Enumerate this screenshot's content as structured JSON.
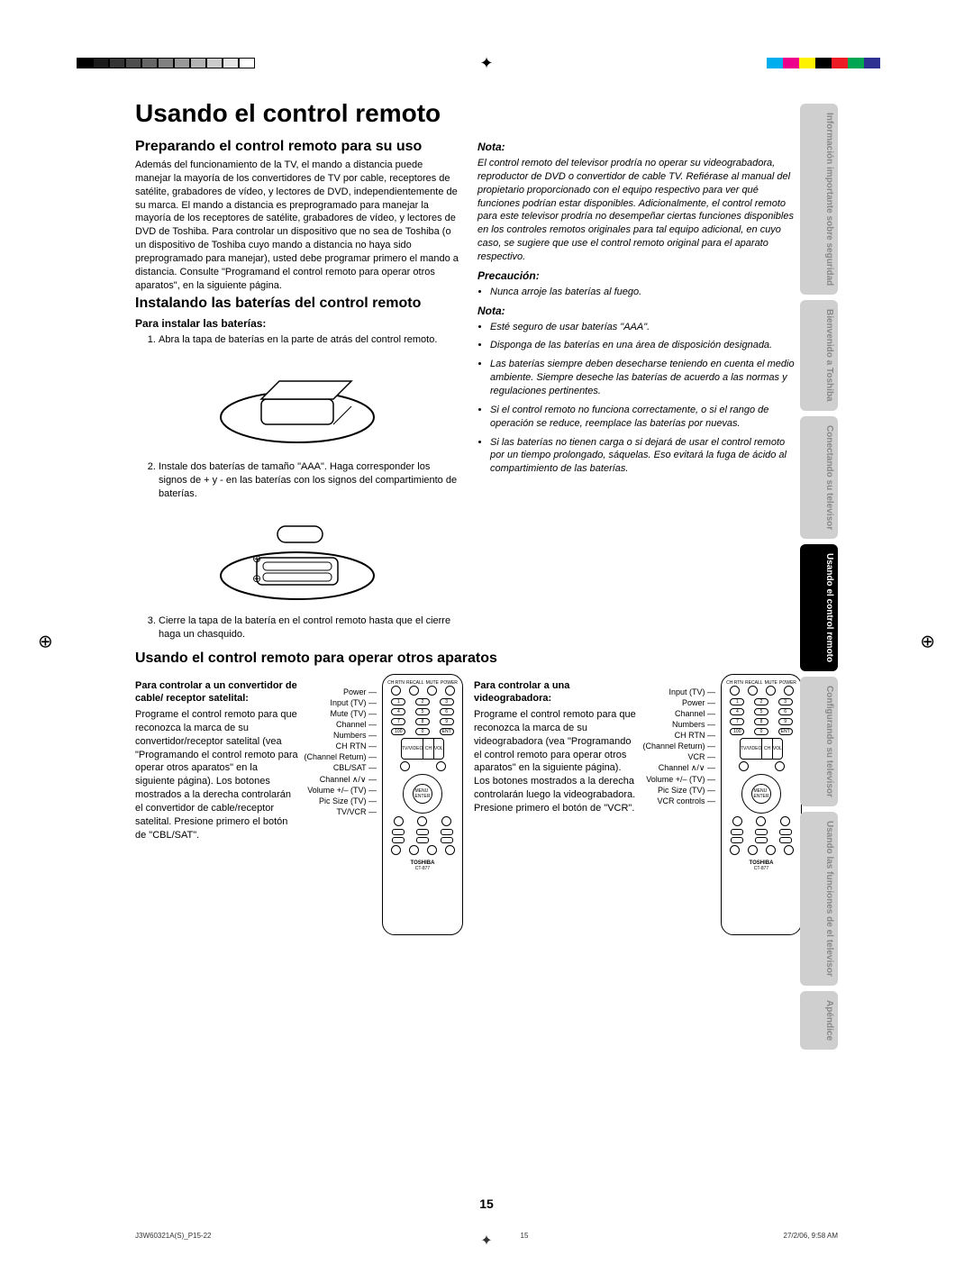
{
  "crop_marks": {
    "bw_shades": [
      "#000000",
      "#1a1a1a",
      "#333333",
      "#4d4d4d",
      "#666666",
      "#808080",
      "#999999",
      "#b3b3b3",
      "#cccccc",
      "#e6e6e6",
      "#ffffff"
    ],
    "color_swatches": [
      "#00aeef",
      "#ec008c",
      "#fff200",
      "#000000",
      "#ed1c24",
      "#00a651",
      "#2e3192",
      "#ffffff"
    ]
  },
  "title": "Usando el control remoto",
  "section1": {
    "heading": "Preparando el control remoto para su uso",
    "body": "Además del funcionamiento de la TV, el mando a distancia puede manejar la mayoría de los convertidores de TV por cable, receptores de satélite, grabadores de vídeo, y lectores de DVD, independientemente de su marca. El mando a distancia es preprogramado para manejar la mayoría de los receptores de satélite, grabadores de vídeo, y lectores de DVD de Toshiba. Para controlar un dispositivo que no sea de Toshiba (o un dispositivo de Toshiba cuyo mando a distancia no haya sido preprogramado para manejar), usted debe programar primero el mando a distancia. Consulte \"Programand el control remoto para operar otros aparatos\", en la siguiente página."
  },
  "section2": {
    "heading": "Instalando las baterías del control remoto",
    "subheading": "Para instalar las baterías:",
    "steps": [
      "Abra la tapa de baterías en la parte de atrás del control remoto.",
      "Instale dos baterías de tamaño \"AAA\". Haga corresponder los signos de + y - en las baterías con los signos del compartimiento de baterías.",
      "Cierre la tapa de la batería en el control remoto hasta que el cierre haga un chasquido."
    ]
  },
  "notes_right": {
    "nota1_head": "Nota:",
    "nota1": "El control remoto del televisor prodría no operar su videograbadora, reproductor de DVD o convertidor de cable TV. Refiérase al manual del propietario proporcionado con el equipo respectivo para ver qué funciones podrían estar disponibles. Adicionalmente, el control remoto para este televisor prodría no desempeñar ciertas funciones disponibles en los controles remotos originales para tal equipo adicional, en cuyo caso, se sugiere que use el control remoto original para el aparato respectivo.",
    "precaucion_head": "Precaución:",
    "precaucion": "Nunca arroje las baterías al fuego.",
    "nota2_head": "Nota:",
    "nota2_items": [
      "Esté seguro de usar baterías \"AAA\".",
      "Disponga de las baterías en una área de disposición designada.",
      "Las baterías siempre deben desecharse teniendo en cuenta el medio ambiente. Siempre deseche las baterías de acuerdo a las normas y regulaciones pertinentes.",
      "Si el control remoto no funciona correctamente, o si el rango de operación se reduce, reemplace las baterías por nuevas.",
      "Si las baterías no tienen carga o si dejará de usar el control remoto por un tiempo prolongado, sáquelas. Eso evitará la fuga de ácido al compartimiento de las baterías."
    ]
  },
  "section3": {
    "heading": "Usando el control remoto para operar otros aparatos",
    "left": {
      "title": "Para controlar a un convertidor de cable/ receptor satelital:",
      "body": "Programe el control remoto para que reconozca la marca de su convertidor/receptor satelital (vea \"Programando el control remoto para operar otros aparatos\" en la siguiente página). Los botones mostrados a la derecha controlarán el convertidor de cable/receptor satelital. Presione primero el botón de \"CBL/SAT\".",
      "labels": [
        "Power",
        "Input (TV)",
        "Mute (TV)",
        "Channel",
        "Numbers",
        "CH RTN",
        "(Channel Return)",
        "CBL/SAT",
        "Channel ∧/∨",
        "Volume +/– (TV)",
        "Pic Size (TV)",
        "",
        "",
        "TV/VCR"
      ]
    },
    "right": {
      "title": "Para controlar a una videograbadora:",
      "body": "Programe el control remoto para que reconozca la marca de su videograbadora (vea \"Programando el control remoto para operar otros aparatos\" en la siguiente página). Los botones mostrados a la derecha controlarán luego la videograbadora. Presione primero el botón de \"VCR\".",
      "labels": [
        "Input (TV)",
        "Power",
        "Channel",
        "Numbers",
        "CH RTN",
        "(Channel Return)",
        "VCR",
        "Channel ∧/∨",
        "Volume +/– (TV)",
        "Pic Size (TV)",
        "",
        "",
        "VCR controls"
      ]
    },
    "remote": {
      "brand": "TOSHIBA",
      "model": "CT-877"
    }
  },
  "tabs": [
    {
      "label": "Información importante sobre seguridad",
      "active": false
    },
    {
      "label": "Bienvenido a Toshiba",
      "active": false
    },
    {
      "label": "Conectando su televisor",
      "active": false
    },
    {
      "label": "Usando el control remoto",
      "active": true
    },
    {
      "label": "Configurando su televisor",
      "active": false
    },
    {
      "label": "Usando las funciones de el televisor",
      "active": false
    },
    {
      "label": "Apéndice",
      "active": false
    }
  ],
  "page_number": "15",
  "footer": {
    "left": "J3W60321A(S)_P15-22",
    "mid_num": "15",
    "right": "27/2/06, 9:58 AM"
  }
}
